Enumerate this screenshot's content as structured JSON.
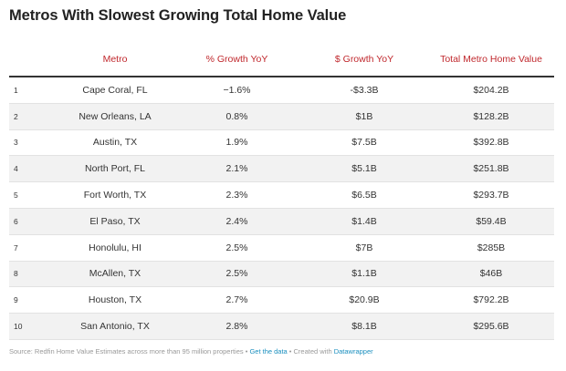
{
  "title": "Metros With Slowest Growing Total Home Value",
  "chart_data": {
    "type": "table",
    "columns": [
      "",
      "Metro",
      "% Growth YoY",
      "$ Growth YoY",
      "Total Metro Home Value"
    ],
    "rows": [
      [
        "1",
        "Cape Coral, FL",
        "−1.6%",
        "-$3.3B",
        "$204.2B"
      ],
      [
        "2",
        "New Orleans, LA",
        "0.8%",
        "$1B",
        "$128.2B"
      ],
      [
        "3",
        "Austin, TX",
        "1.9%",
        "$7.5B",
        "$392.8B"
      ],
      [
        "4",
        "North Port, FL",
        "2.1%",
        "$5.1B",
        "$251.8B"
      ],
      [
        "5",
        "Fort Worth, TX",
        "2.3%",
        "$6.5B",
        "$293.7B"
      ],
      [
        "6",
        "El Paso, TX",
        "2.4%",
        "$1.4B",
        "$59.4B"
      ],
      [
        "7",
        "Honolulu, HI",
        "2.5%",
        "$7B",
        "$285B"
      ],
      [
        "8",
        "McAllen, TX",
        "2.5%",
        "$1.1B",
        "$46B"
      ],
      [
        "9",
        "Houston, TX",
        "2.7%",
        "$20.9B",
        "$792.2B"
      ],
      [
        "10",
        "San Antonio, TX",
        "2.8%",
        "$8.1B",
        "$295.6B"
      ]
    ]
  },
  "footer": {
    "source": "Source: Redfin Home Value Estimates across more than 95 million properties • ",
    "get_data": "Get the data",
    "created": " • Created with ",
    "datawrapper": "Datawrapper"
  },
  "colors": {
    "header_text": "#c0282d",
    "alt_row": "#f2f2f2",
    "link": "#1a8fbf"
  }
}
